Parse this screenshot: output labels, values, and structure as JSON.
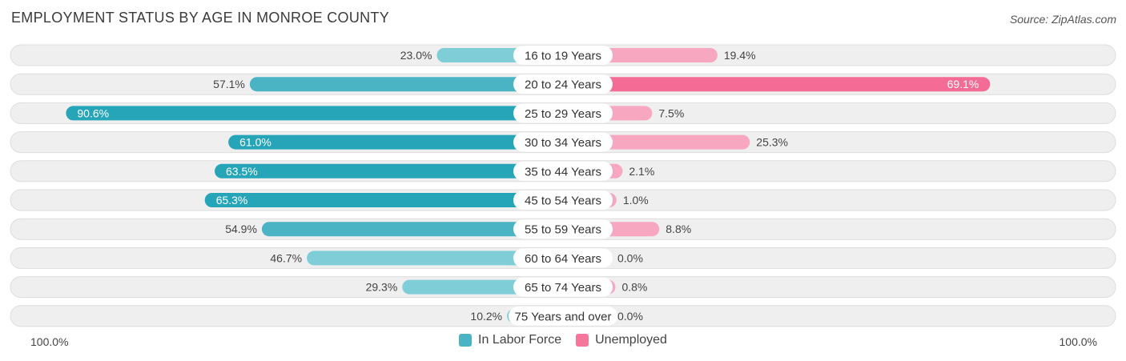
{
  "title": "EMPLOYMENT STATUS BY AGE IN MONROE COUNTY",
  "source": "Source: ZipAtlas.com",
  "axis": {
    "left_label": "100.0%",
    "right_label": "100.0%"
  },
  "legend": [
    {
      "label": "In Labor Force",
      "color": "#4ab3c4"
    },
    {
      "label": "Unemployed",
      "color": "#f5759b"
    }
  ],
  "colors": {
    "labor_light": "#7fcdd6",
    "labor_mid": "#4ab3c4",
    "labor_dark": "#26a4b8",
    "unemp_light": "#f7a8c0",
    "unemp_dark": "#f46c95",
    "row_bg": "#efefef",
    "row_border": "#dddddd"
  },
  "chart_data": {
    "type": "bar",
    "orientation": "horizontal-diverging",
    "title": "EMPLOYMENT STATUS BY AGE IN MONROE COUNTY",
    "categories": [
      "16 to 19 Years",
      "20 to 24 Years",
      "25 to 29 Years",
      "30 to 34 Years",
      "35 to 44 Years",
      "45 to 54 Years",
      "55 to 59 Years",
      "60 to 64 Years",
      "65 to 74 Years",
      "75 Years and over"
    ],
    "series": [
      {
        "name": "In Labor Force",
        "values": [
          23.0,
          57.1,
          90.6,
          61.0,
          63.5,
          65.3,
          54.9,
          46.7,
          29.3,
          10.2
        ],
        "labels": [
          "23.0%",
          "57.1%",
          "90.6%",
          "61.0%",
          "63.5%",
          "65.3%",
          "54.9%",
          "46.7%",
          "29.3%",
          "10.2%"
        ]
      },
      {
        "name": "Unemployed",
        "values": [
          19.4,
          69.1,
          7.5,
          25.3,
          2.1,
          1.0,
          8.8,
          0.0,
          0.8,
          0.0
        ],
        "labels": [
          "19.4%",
          "69.1%",
          "7.5%",
          "25.3%",
          "2.1%",
          "1.0%",
          "8.8%",
          "0.0%",
          "0.8%",
          "0.0%"
        ]
      }
    ],
    "xlim": [
      -100,
      100
    ]
  }
}
